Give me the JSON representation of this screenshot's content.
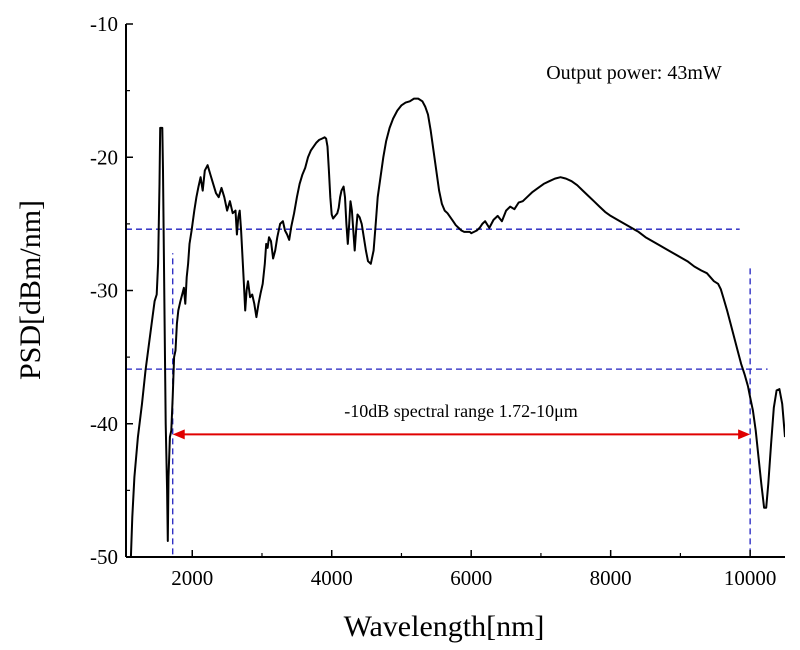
{
  "chart_data": {
    "type": "line",
    "xlabel": "Wavelength[nm]",
    "ylabel": "PSD[dBm/nm]",
    "xlim": [
      1050,
      10500
    ],
    "ylim": [
      -50,
      -10
    ],
    "x_ticks": [
      2000,
      4000,
      6000,
      8000,
      10000
    ],
    "x_tick_labels": [
      "2000",
      "4000",
      "6000",
      "8000",
      "10000"
    ],
    "y_ticks": [
      -50,
      -40,
      -30,
      -20,
      -10
    ],
    "y_tick_labels": [
      "-50",
      "-40",
      "-30",
      "-20",
      "-10"
    ],
    "grid": false,
    "series": [
      {
        "name": "PSD spectrum",
        "color": "#000000",
        "points": [
          [
            1120,
            -50
          ],
          [
            1140,
            -47
          ],
          [
            1170,
            -44
          ],
          [
            1220,
            -41
          ],
          [
            1280,
            -38.5
          ],
          [
            1330,
            -36
          ],
          [
            1380,
            -34
          ],
          [
            1430,
            -32
          ],
          [
            1460,
            -30.8
          ],
          [
            1490,
            -30.3
          ],
          [
            1510,
            -28
          ],
          [
            1530,
            -22
          ],
          [
            1540,
            -17.8
          ],
          [
            1570,
            -17.8
          ],
          [
            1580,
            -21
          ],
          [
            1600,
            -31
          ],
          [
            1620,
            -40
          ],
          [
            1640,
            -45
          ],
          [
            1650,
            -48.8
          ],
          [
            1660,
            -44
          ],
          [
            1680,
            -41
          ],
          [
            1700,
            -40.5
          ],
          [
            1720,
            -38
          ],
          [
            1740,
            -35
          ],
          [
            1760,
            -34.5
          ],
          [
            1780,
            -32.5
          ],
          [
            1800,
            -31.5
          ],
          [
            1830,
            -30.8
          ],
          [
            1860,
            -30.2
          ],
          [
            1880,
            -29.8
          ],
          [
            1900,
            -31
          ],
          [
            1920,
            -29
          ],
          [
            1940,
            -28
          ],
          [
            1960,
            -26.5
          ],
          [
            1990,
            -25.5
          ],
          [
            2030,
            -24
          ],
          [
            2060,
            -23
          ],
          [
            2090,
            -22.2
          ],
          [
            2120,
            -21.5
          ],
          [
            2150,
            -22.5
          ],
          [
            2180,
            -21
          ],
          [
            2220,
            -20.6
          ],
          [
            2260,
            -21.3
          ],
          [
            2300,
            -22
          ],
          [
            2340,
            -22.7
          ],
          [
            2380,
            -23
          ],
          [
            2420,
            -22.3
          ],
          [
            2460,
            -23
          ],
          [
            2500,
            -24
          ],
          [
            2540,
            -23.3
          ],
          [
            2580,
            -24.2
          ],
          [
            2620,
            -24
          ],
          [
            2640,
            -25.8
          ],
          [
            2660,
            -24.5
          ],
          [
            2680,
            -24
          ],
          [
            2700,
            -25.5
          ],
          [
            2720,
            -27.5
          ],
          [
            2740,
            -29.5
          ],
          [
            2760,
            -31.5
          ],
          [
            2780,
            -30
          ],
          [
            2800,
            -29.3
          ],
          [
            2830,
            -30.5
          ],
          [
            2860,
            -30.3
          ],
          [
            2890,
            -31
          ],
          [
            2920,
            -32
          ],
          [
            2950,
            -31
          ],
          [
            2980,
            -30.2
          ],
          [
            3010,
            -29.5
          ],
          [
            3040,
            -28
          ],
          [
            3060,
            -26.5
          ],
          [
            3080,
            -26.8
          ],
          [
            3100,
            -26
          ],
          [
            3130,
            -26.3
          ],
          [
            3160,
            -27.6
          ],
          [
            3190,
            -27
          ],
          [
            3220,
            -26
          ],
          [
            3260,
            -25
          ],
          [
            3300,
            -24.8
          ],
          [
            3330,
            -25.5
          ],
          [
            3360,
            -25.8
          ],
          [
            3390,
            -26.2
          ],
          [
            3420,
            -25.2
          ],
          [
            3460,
            -24.2
          ],
          [
            3500,
            -23
          ],
          [
            3540,
            -22
          ],
          [
            3580,
            -21.3
          ],
          [
            3620,
            -20.8
          ],
          [
            3660,
            -20
          ],
          [
            3700,
            -19.5
          ],
          [
            3740,
            -19.2
          ],
          [
            3780,
            -18.9
          ],
          [
            3820,
            -18.7
          ],
          [
            3860,
            -18.6
          ],
          [
            3900,
            -18.5
          ],
          [
            3920,
            -18.6
          ],
          [
            3940,
            -19.2
          ],
          [
            3960,
            -21
          ],
          [
            3980,
            -23
          ],
          [
            4000,
            -24.3
          ],
          [
            4020,
            -24.6
          ],
          [
            4050,
            -24.4
          ],
          [
            4080,
            -24.2
          ],
          [
            4100,
            -23.8
          ],
          [
            4120,
            -23
          ],
          [
            4140,
            -22.5
          ],
          [
            4170,
            -22.2
          ],
          [
            4190,
            -23
          ],
          [
            4210,
            -25
          ],
          [
            4230,
            -26.5
          ],
          [
            4250,
            -25
          ],
          [
            4270,
            -23.3
          ],
          [
            4290,
            -24
          ],
          [
            4310,
            -25.5
          ],
          [
            4330,
            -27
          ],
          [
            4350,
            -25.5
          ],
          [
            4370,
            -24.3
          ],
          [
            4400,
            -24.5
          ],
          [
            4430,
            -25
          ],
          [
            4460,
            -26
          ],
          [
            4490,
            -27
          ],
          [
            4520,
            -27.8
          ],
          [
            4560,
            -28
          ],
          [
            4600,
            -27
          ],
          [
            4630,
            -25
          ],
          [
            4660,
            -23
          ],
          [
            4700,
            -21.5
          ],
          [
            4740,
            -20
          ],
          [
            4780,
            -18.8
          ],
          [
            4830,
            -17.8
          ],
          [
            4880,
            -17.1
          ],
          [
            4940,
            -16.5
          ],
          [
            5000,
            -16.1
          ],
          [
            5060,
            -15.9
          ],
          [
            5120,
            -15.8
          ],
          [
            5180,
            -15.6
          ],
          [
            5240,
            -15.6
          ],
          [
            5300,
            -15.8
          ],
          [
            5340,
            -16.2
          ],
          [
            5380,
            -16.8
          ],
          [
            5420,
            -18
          ],
          [
            5460,
            -19.5
          ],
          [
            5500,
            -21
          ],
          [
            5540,
            -22.5
          ],
          [
            5580,
            -23.5
          ],
          [
            5620,
            -24
          ],
          [
            5660,
            -24.2
          ],
          [
            5700,
            -24.5
          ],
          [
            5740,
            -24.8
          ],
          [
            5780,
            -25.1
          ],
          [
            5820,
            -25.3
          ],
          [
            5860,
            -25.5
          ],
          [
            5900,
            -25.6
          ],
          [
            5940,
            -25.6
          ],
          [
            5980,
            -25.6
          ],
          [
            6000,
            -25.7
          ],
          [
            6040,
            -25.6
          ],
          [
            6080,
            -25.5
          ],
          [
            6120,
            -25.3
          ],
          [
            6160,
            -25.0
          ],
          [
            6200,
            -24.8
          ],
          [
            6260,
            -25.3
          ],
          [
            6320,
            -24.7
          ],
          [
            6380,
            -24.4
          ],
          [
            6440,
            -24.8
          ],
          [
            6500,
            -24.0
          ],
          [
            6560,
            -23.7
          ],
          [
            6620,
            -23.9
          ],
          [
            6680,
            -23.4
          ],
          [
            6740,
            -23.3
          ],
          [
            6800,
            -23.0
          ],
          [
            6880,
            -22.6
          ],
          [
            6960,
            -22.3
          ],
          [
            7040,
            -22.0
          ],
          [
            7120,
            -21.8
          ],
          [
            7200,
            -21.6
          ],
          [
            7280,
            -21.5
          ],
          [
            7360,
            -21.6
          ],
          [
            7440,
            -21.8
          ],
          [
            7520,
            -22.1
          ],
          [
            7600,
            -22.5
          ],
          [
            7680,
            -22.9
          ],
          [
            7760,
            -23.3
          ],
          [
            7840,
            -23.7
          ],
          [
            7920,
            -24.1
          ],
          [
            8000,
            -24.4
          ],
          [
            8100,
            -24.7
          ],
          [
            8200,
            -25.0
          ],
          [
            8300,
            -25.3
          ],
          [
            8400,
            -25.6
          ],
          [
            8500,
            -26.0
          ],
          [
            8600,
            -26.3
          ],
          [
            8700,
            -26.6
          ],
          [
            8800,
            -26.9
          ],
          [
            8900,
            -27.2
          ],
          [
            9000,
            -27.5
          ],
          [
            9100,
            -27.8
          ],
          [
            9200,
            -28.2
          ],
          [
            9300,
            -28.5
          ],
          [
            9380,
            -28.7
          ],
          [
            9430,
            -29.0
          ],
          [
            9480,
            -29.3
          ],
          [
            9540,
            -29.5
          ],
          [
            9580,
            -29.9
          ],
          [
            9620,
            -30.6
          ],
          [
            9670,
            -31.5
          ],
          [
            9720,
            -32.5
          ],
          [
            9770,
            -33.5
          ],
          [
            9820,
            -34.5
          ],
          [
            9870,
            -35.5
          ],
          [
            9920,
            -36.3
          ],
          [
            9970,
            -37.2
          ],
          [
            10000,
            -38.0
          ],
          [
            10040,
            -39.0
          ],
          [
            10080,
            -40.5
          ],
          [
            10120,
            -42.5
          ],
          [
            10160,
            -44.5
          ],
          [
            10200,
            -46.3
          ],
          [
            10230,
            -46.3
          ],
          [
            10260,
            -44.5
          ],
          [
            10300,
            -41.5
          ],
          [
            10340,
            -38.8
          ],
          [
            10380,
            -37.5
          ],
          [
            10420,
            -37.4
          ],
          [
            10460,
            -38.5
          ],
          [
            10500,
            -41
          ]
        ]
      }
    ],
    "reference_lines": [
      {
        "name": "upper-dashed-level",
        "orientation": "horizontal",
        "y": -25.4,
        "x_range": [
          1050,
          9850
        ],
        "color": "#2020c0"
      },
      {
        "name": "lower-dashed-level",
        "orientation": "horizontal",
        "y": -35.9,
        "x_range": [
          1050,
          10250
        ],
        "color": "#2020c0"
      },
      {
        "name": "left-dashed-bound",
        "orientation": "vertical",
        "x": 1720,
        "y_range": [
          -49.8,
          -27.2
        ],
        "color": "#2020c0"
      },
      {
        "name": "right-dashed-bound",
        "orientation": "vertical",
        "x": 10000,
        "y_range": [
          -49.8,
          -28.2
        ],
        "color": "#2020c0"
      }
    ],
    "range_arrow": {
      "x_start": 1720,
      "x_end": 10000,
      "y": -40.8,
      "color": "#e00000"
    },
    "annotations": {
      "output_power": "Output power: 43mW",
      "range_label": "-10dB spectral range 1.72-10μm"
    }
  }
}
